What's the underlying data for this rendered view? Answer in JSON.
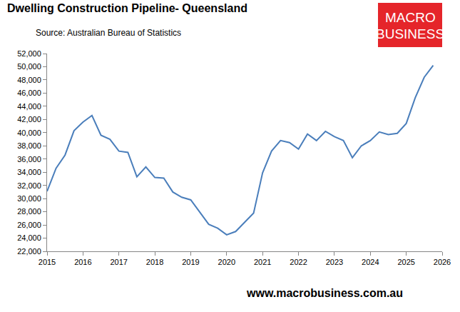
{
  "chart_data": {
    "type": "line",
    "title": "Dwelling Construction Pipeline- Queensland",
    "subtitle": "Source: Australian Bureau of Statistics",
    "annotations": [
      "MACRO",
      "BUSINESS",
      "www.macrobusiness.com.au"
    ],
    "x": [
      2015,
      2015.25,
      2015.5,
      2015.75,
      2016,
      2016.25,
      2016.5,
      2016.75,
      2017,
      2017.25,
      2017.5,
      2017.75,
      2018,
      2018.25,
      2018.5,
      2018.75,
      2019,
      2019.25,
      2019.5,
      2019.75,
      2020,
      2020.25,
      2020.5,
      2020.75,
      2021,
      2021.25,
      2021.5,
      2021.75,
      2022,
      2022.25,
      2022.5,
      2022.75,
      2023,
      2023.25,
      2023.5,
      2023.75,
      2024,
      2024.25,
      2024.5,
      2024.75,
      2025,
      2025.25,
      2025.5,
      2025.75
    ],
    "values": [
      31100,
      34600,
      36600,
      40300,
      41600,
      42600,
      39600,
      39000,
      37200,
      37000,
      33300,
      34800,
      33200,
      33100,
      31000,
      30200,
      29800,
      28000,
      26100,
      25500,
      24500,
      25000,
      26400,
      27800,
      33900,
      37200,
      38800,
      38500,
      37500,
      39800,
      38800,
      40200,
      39400,
      38800,
      36200,
      38000,
      38800,
      40100,
      39700,
      39900,
      41400,
      45300,
      48400,
      50200
    ],
    "color": "#4a7ebb",
    "xlim": [
      2015,
      2026
    ],
    "xticks": [
      2015,
      2016,
      2017,
      2018,
      2019,
      2020,
      2021,
      2022,
      2023,
      2024,
      2025,
      2026
    ],
    "ylim": [
      22000,
      52000
    ],
    "yticks": [
      {
        "value": 22000,
        "label": "22,000"
      },
      {
        "value": 24000,
        "label": "24,000"
      },
      {
        "value": 26000,
        "label": "26,000"
      },
      {
        "value": 28000,
        "label": "28,000"
      },
      {
        "value": 30000,
        "label": "30,000"
      },
      {
        "value": 32000,
        "label": "32,000"
      },
      {
        "value": 34000,
        "label": "34,000"
      },
      {
        "value": 36000,
        "label": "36,000"
      },
      {
        "value": 38000,
        "label": "38,000"
      },
      {
        "value": 40000,
        "label": "40,000"
      },
      {
        "value": 42000,
        "label": "42,000"
      },
      {
        "value": 44000,
        "label": "44,000"
      },
      {
        "value": 46000,
        "label": "46,000"
      },
      {
        "value": 48000,
        "label": "48,000"
      },
      {
        "value": 50000,
        "label": "50,000"
      },
      {
        "value": 52000,
        "label": "52,000"
      }
    ],
    "grid": false
  }
}
